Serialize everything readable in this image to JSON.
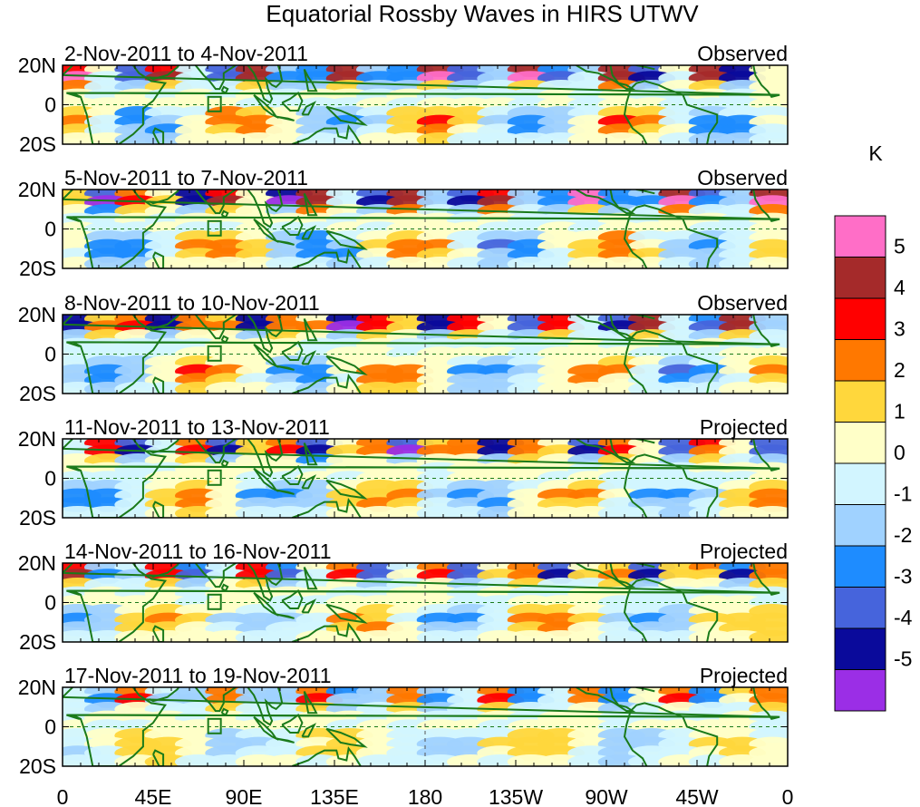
{
  "chart_data": {
    "type": "heatmap",
    "title": "Equatorial Rossby Waves in HIRS UTWV",
    "units": "K",
    "x_ticks": [
      "0",
      "45E",
      "90E",
      "135E",
      "180",
      "135W",
      "90W",
      "45W",
      "0"
    ],
    "y_ticks": [
      "20N",
      "0",
      "20S"
    ],
    "colorbar": {
      "levels": [
        "5",
        "4",
        "3",
        "2",
        "1",
        "0",
        "-1",
        "-2",
        "-3",
        "-4",
        "-5"
      ],
      "colors": [
        "#ff6ec7",
        "#a52a2a",
        "#ff0000",
        "#ff7800",
        "#ffd73c",
        "#ffffc8",
        "#d2f5ff",
        "#a0d2ff",
        "#1e8cff",
        "#4664dc",
        "#0a0a9b",
        "#9b2ee6"
      ]
    },
    "panels": [
      {
        "date_range": "2-Nov-2011 to 4-Nov-2011",
        "status": "Observed"
      },
      {
        "date_range": "5-Nov-2011 to 7-Nov-2011",
        "status": "Observed"
      },
      {
        "date_range": "8-Nov-2011 to 10-Nov-2011",
        "status": "Observed"
      },
      {
        "date_range": "11-Nov-2011 to 13-Nov-2011",
        "status": "Projected"
      },
      {
        "date_range": "14-Nov-2011 to 16-Nov-2011",
        "status": "Projected"
      },
      {
        "date_range": "17-Nov-2011 to 19-Nov-2011",
        "status": "Projected"
      }
    ]
  }
}
